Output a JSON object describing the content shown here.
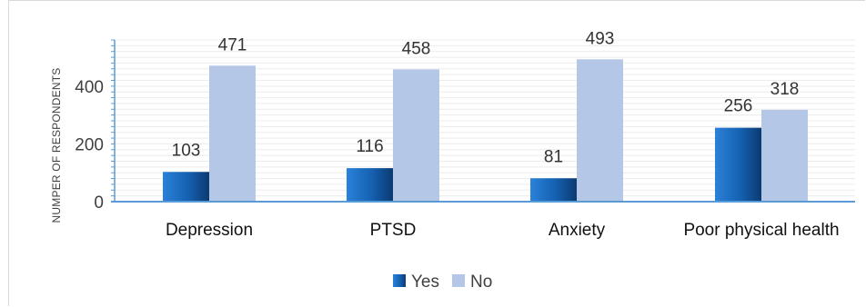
{
  "chart_data": {
    "type": "bar",
    "title": "",
    "xlabel": "",
    "ylabel": "NUMPER OF RESPONDENTS",
    "categories": [
      "Depression",
      "PTSD",
      "Anxiety",
      "Poor physical health"
    ],
    "series": [
      {
        "name": "Yes",
        "values": [
          103,
          116,
          81,
          256
        ],
        "color": "#1f6fc5",
        "color_dark": "#0b3f7a"
      },
      {
        "name": "No",
        "values": [
          471,
          458,
          493,
          318
        ],
        "color": "#b4c7e7"
      }
    ],
    "ylim": [
      0,
      560
    ],
    "yticks": [
      0,
      200,
      400
    ],
    "ytick_labels": [
      "0",
      "200",
      "400"
    ],
    "grid": true,
    "legend": "bottom",
    "axis_color": "#5b9bd5",
    "grid_color": "#ececec"
  }
}
